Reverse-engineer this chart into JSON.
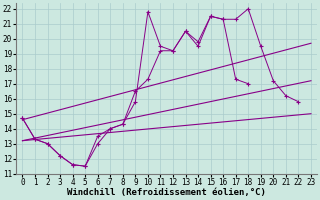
{
  "xlabel": "Windchill (Refroidissement éolien,°C)",
  "bg_color": "#cce8e0",
  "grid_color": "#aacccc",
  "line_color": "#880088",
  "xlim": [
    -0.5,
    23.5
  ],
  "ylim": [
    11,
    22.4
  ],
  "xticks": [
    0,
    1,
    2,
    3,
    4,
    5,
    6,
    7,
    8,
    9,
    10,
    11,
    12,
    13,
    14,
    15,
    16,
    17,
    18,
    19,
    20,
    21,
    22,
    23
  ],
  "yticks": [
    11,
    12,
    13,
    14,
    15,
    16,
    17,
    18,
    19,
    20,
    21,
    22
  ],
  "curve1_x": [
    0,
    1,
    2,
    3,
    4,
    5,
    6,
    7,
    8,
    9,
    10,
    11,
    12,
    13,
    14,
    15,
    16,
    17,
    18,
    19,
    20,
    21,
    22
  ],
  "curve1_y": [
    14.7,
    13.3,
    13.0,
    12.2,
    11.6,
    11.5,
    13.5,
    14.0,
    14.3,
    15.8,
    21.8,
    19.5,
    19.2,
    20.5,
    19.5,
    21.5,
    21.3,
    21.3,
    22.0,
    19.5,
    17.2,
    16.2,
    15.8
  ],
  "curve2_x": [
    0,
    1,
    2,
    3,
    4,
    5,
    6,
    7,
    8,
    9,
    10,
    11,
    12,
    13,
    14,
    15,
    16,
    17,
    18,
    19,
    20,
    21,
    22,
    23
  ],
  "curve2_y": [
    14.7,
    13.3,
    13.0,
    12.2,
    11.6,
    11.5,
    13.0,
    14.0,
    14.3,
    16.5,
    17.3,
    19.2,
    19.2,
    20.5,
    19.8,
    21.5,
    21.3,
    17.3,
    17.0,
    null,
    null,
    null,
    null,
    null
  ],
  "line1_x": [
    0,
    23
  ],
  "line1_y": [
    13.2,
    15.0
  ],
  "line2_x": [
    0,
    23
  ],
  "line2_y": [
    14.6,
    19.7
  ],
  "line3_x": [
    0,
    23
  ],
  "line3_y": [
    13.2,
    17.2
  ],
  "xlabel_fontsize": 6.5,
  "tick_fontsize": 5.5,
  "font_family": "monospace"
}
